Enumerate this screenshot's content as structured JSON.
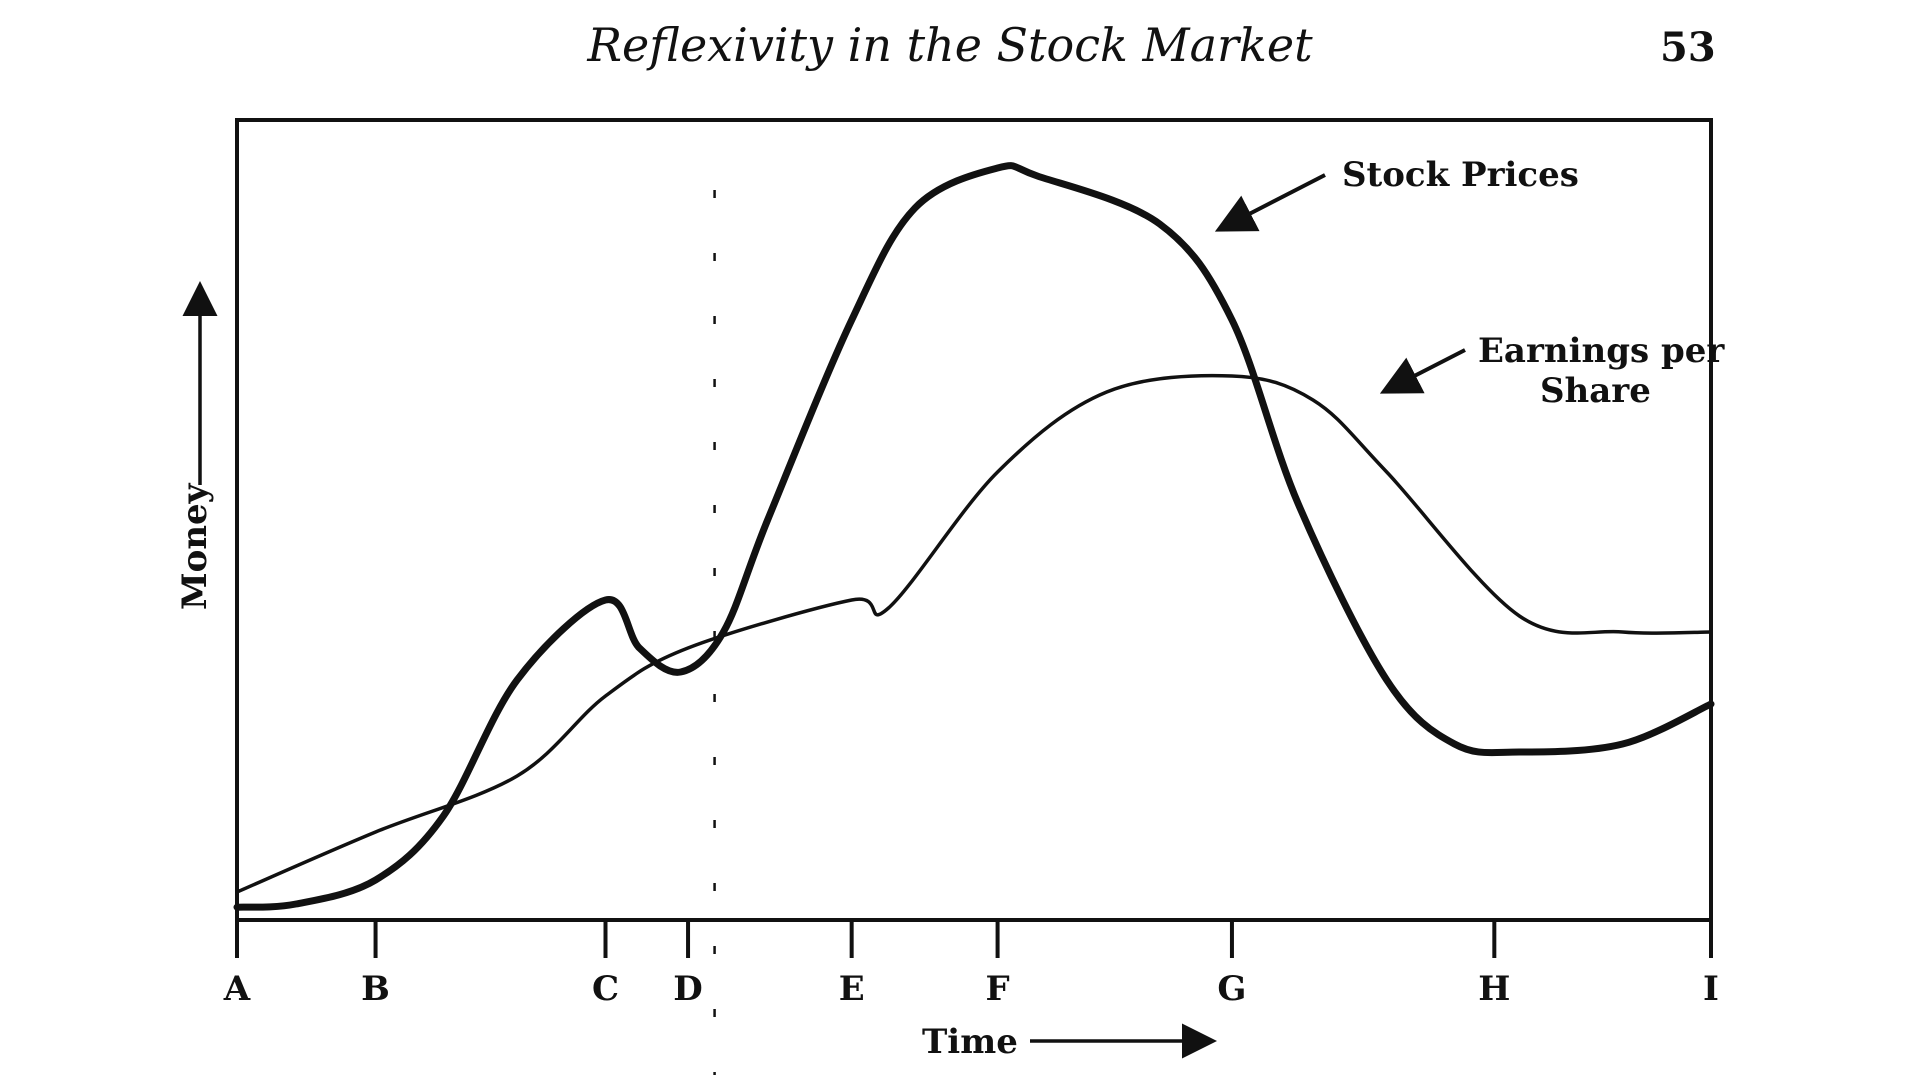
{
  "header": {
    "running_title": "Reflexivity in the Stock Market",
    "page_number": "53"
  },
  "chart_data": {
    "type": "line",
    "xlabel": "Time",
    "ylabel": "Money",
    "categories": [
      "A",
      "B",
      "C",
      "D",
      "E",
      "F",
      "G",
      "H",
      "I"
    ],
    "category_positions": [
      0,
      9.4,
      25,
      30.6,
      41.7,
      51.6,
      67.5,
      85.3,
      100
    ],
    "xlim": [
      0,
      100
    ],
    "ylim": [
      0,
      100
    ],
    "grid": false,
    "legend": "none",
    "series": [
      {
        "name": "Stock Prices",
        "color": "#111111",
        "emphasis": "bold",
        "x": [
          0,
          4,
          9.4,
          14,
          19,
          25,
          27.3,
          30.1,
          33,
          36,
          41.7,
          46,
          51.6,
          54.3,
          62.6,
          67.5,
          72,
          78,
          82.6,
          87,
          94,
          100
        ],
        "y": [
          1.6,
          2,
          5,
          13,
          30,
          40,
          34,
          31,
          36,
          50,
          75,
          89,
          94,
          93,
          87,
          75,
          52,
          30,
          22,
          21,
          22,
          27
        ]
      },
      {
        "name": "Earnings per Share",
        "color": "#111111",
        "emphasis": "regular",
        "x": [
          0,
          9.4,
          19,
          25,
          30.6,
          41.7,
          44.2,
          51.6,
          59,
          67.5,
          73,
          78,
          87,
          94,
          100
        ],
        "y": [
          3.5,
          11,
          18,
          28,
          34,
          40,
          39,
          56,
          66,
          68,
          65,
          56,
          38,
          36,
          36
        ]
      }
    ],
    "annotations": [
      {
        "text": "Stock Prices",
        "points_to_series": "Stock Prices"
      },
      {
        "text_lines": [
          "Earnings per",
          "Share"
        ],
        "points_to_series": "Earnings per Share"
      }
    ],
    "reference_line": {
      "x": 32.4,
      "style": "dashed"
    }
  }
}
